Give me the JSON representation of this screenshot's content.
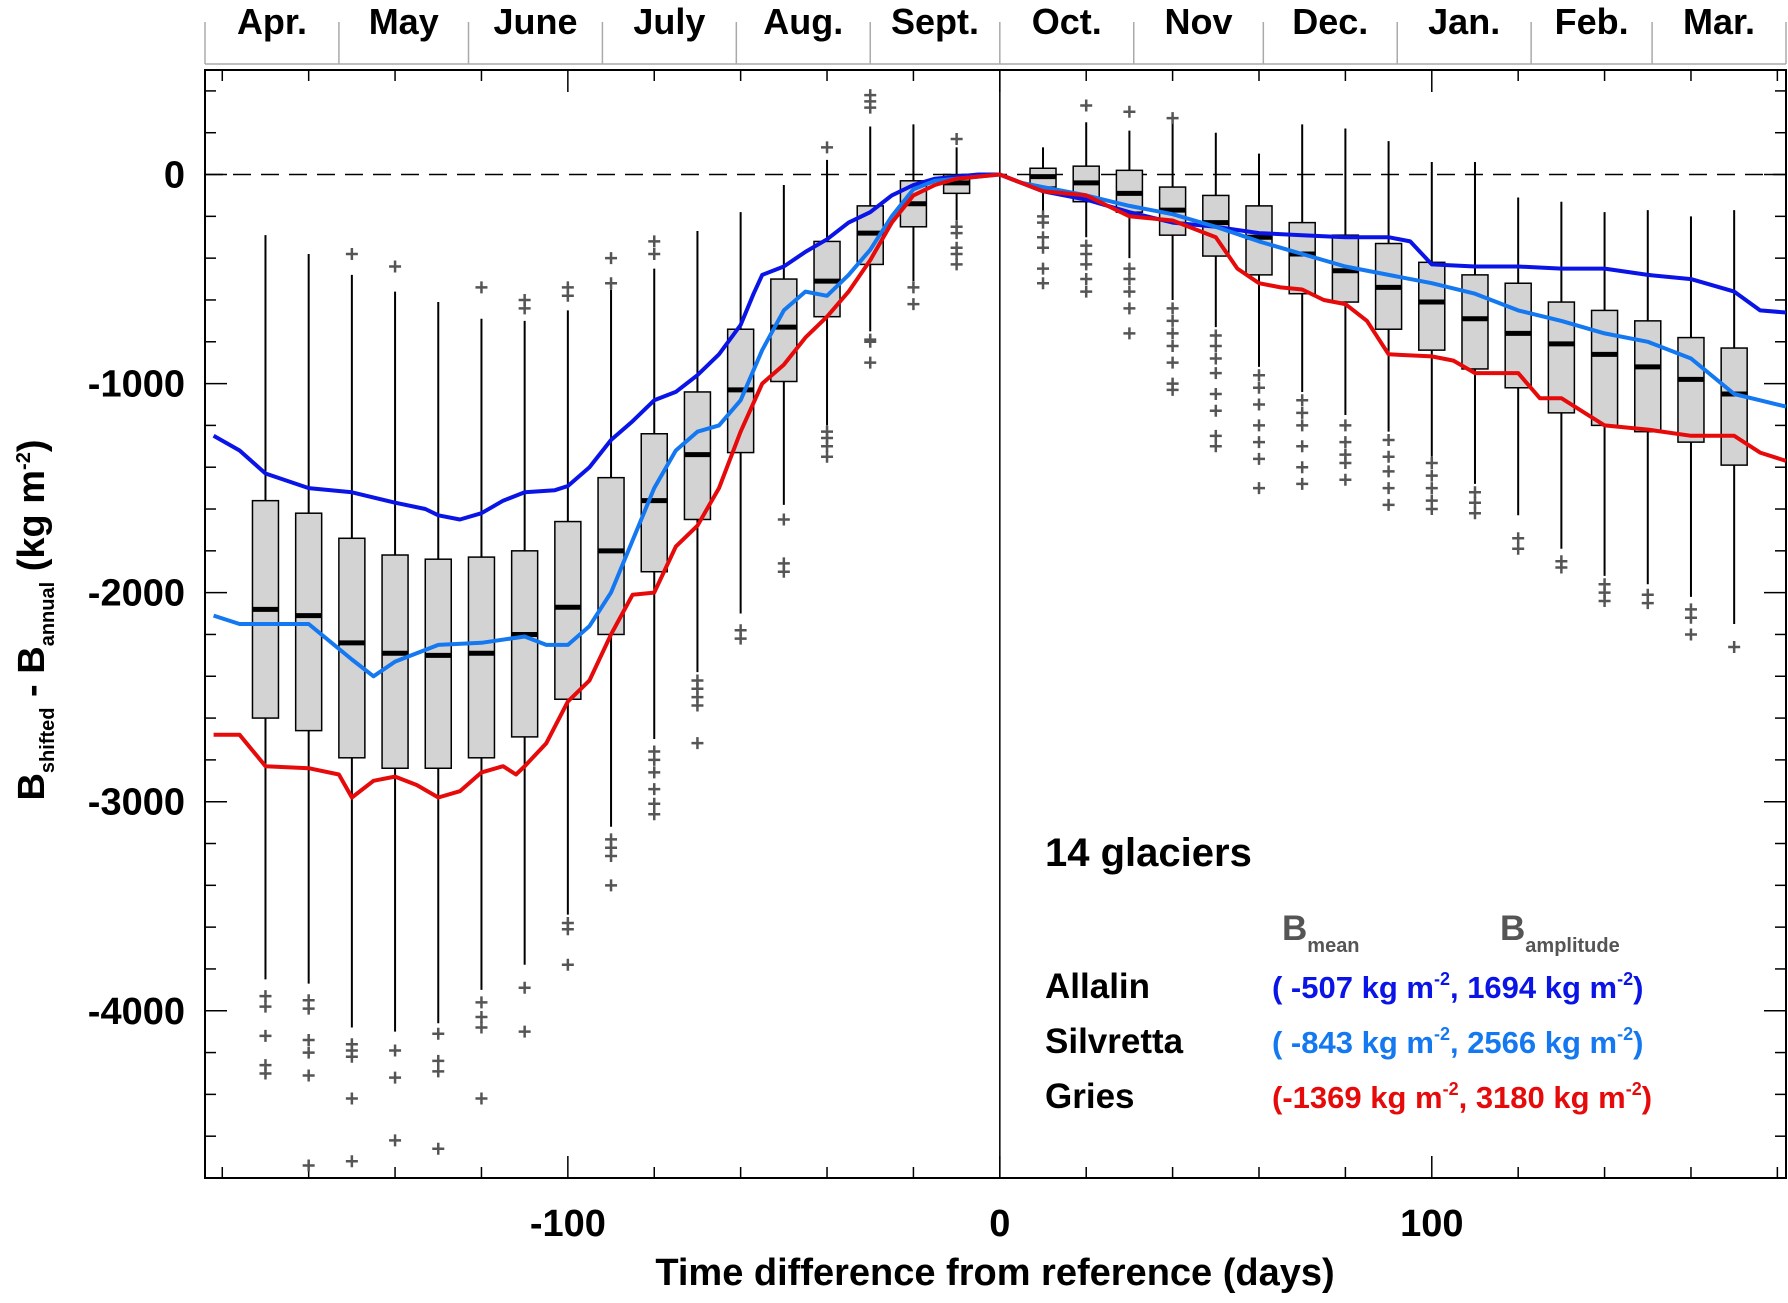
{
  "chart_data": {
    "type": "box",
    "xlabel": "Time difference from reference (days)",
    "ylabel": "B shifted - B annual (kg m-2)",
    "ylabel_parts": {
      "main": "B",
      "sub1": "shifted",
      "mid": " - B",
      "sub2": "annual",
      "unit": " (kg m",
      "unit_sup": "-2",
      "unit_end": ")"
    },
    "xlim": [
      -184,
      182
    ],
    "ylim": [
      -4800,
      500
    ],
    "xticks": [
      -100,
      0,
      100
    ],
    "xtick_labels": [
      "-100",
      "0",
      "100"
    ],
    "yticks": [
      0,
      -1000,
      -2000,
      -3000,
      -4000
    ],
    "ytick_labels": [
      "0",
      "-1000",
      "-2000",
      "-3000",
      "-4000"
    ],
    "months": [
      "Apr.",
      "May",
      "June",
      "July",
      "Aug.",
      "Sept.",
      "Oct.",
      "Nov",
      "Dec.",
      "Jan.",
      "Feb.",
      "Mar."
    ],
    "month_boundaries": [
      -184,
      -153,
      -123,
      -92,
      -61,
      -30,
      0,
      31,
      61,
      92,
      123,
      151,
      182
    ],
    "reference_line": 0,
    "annotation": "14 glaciers",
    "legend_header": {
      "mean_main": "B",
      "mean_sub": "mean",
      "amp_main": "B",
      "amp_sub": "amplitude"
    },
    "series": [
      {
        "name": "Allalin",
        "color": "#0a14e6",
        "stats": "( -507 kg m",
        "stats_sup1": "-2",
        "stats_mid": ",  1694 kg m",
        "stats_sup2": "-2",
        "stats_end": ")",
        "x": [
          -182,
          -176,
          -170,
          -160,
          -150,
          -140,
          -133,
          -130,
          -125,
          -120,
          -115,
          -110,
          -103,
          -100,
          -95,
          -90,
          -85,
          -80,
          -75,
          -70,
          -65,
          -60,
          -57,
          -55,
          -50,
          -45,
          -40,
          -35,
          -30,
          -25,
          -20,
          -15,
          -10,
          -5,
          0,
          5,
          10,
          20,
          30,
          40,
          50,
          60,
          70,
          80,
          90,
          95,
          100,
          110,
          120,
          130,
          140,
          150,
          160,
          170,
          176,
          182
        ],
        "y": [
          -1250,
          -1320,
          -1430,
          -1500,
          -1520,
          -1570,
          -1600,
          -1630,
          -1650,
          -1620,
          -1560,
          -1520,
          -1510,
          -1490,
          -1400,
          -1270,
          -1180,
          -1080,
          -1040,
          -960,
          -860,
          -720,
          -570,
          -480,
          -440,
          -370,
          -310,
          -230,
          -180,
          -100,
          -50,
          -20,
          -10,
          0,
          0,
          -40,
          -80,
          -120,
          -180,
          -230,
          -250,
          -280,
          -290,
          -300,
          -300,
          -320,
          -430,
          -440,
          -440,
          -450,
          -450,
          -480,
          -500,
          -560,
          -650,
          -660
        ]
      },
      {
        "name": "Silvretta",
        "color": "#1478f0",
        "stats": "( -843 kg m",
        "stats_sup1": "-2",
        "stats_mid": ",  2566 kg m",
        "stats_sup2": "-2",
        "stats_end": ")",
        "x": [
          -182,
          -176,
          -170,
          -160,
          -150,
          -145,
          -140,
          -130,
          -120,
          -110,
          -105,
          -100,
          -95,
          -90,
          -85,
          -80,
          -75,
          -70,
          -65,
          -60,
          -55,
          -50,
          -45,
          -40,
          -35,
          -30,
          -25,
          -20,
          -15,
          -10,
          -5,
          0,
          5,
          10,
          20,
          30,
          40,
          50,
          60,
          70,
          80,
          90,
          100,
          110,
          120,
          130,
          140,
          150,
          160,
          170,
          176,
          182
        ],
        "y": [
          -2110,
          -2150,
          -2150,
          -2150,
          -2320,
          -2400,
          -2330,
          -2250,
          -2240,
          -2210,
          -2250,
          -2250,
          -2160,
          -2000,
          -1750,
          -1500,
          -1320,
          -1230,
          -1200,
          -1080,
          -840,
          -650,
          -560,
          -580,
          -480,
          -360,
          -200,
          -70,
          -30,
          -20,
          -10,
          0,
          -40,
          -60,
          -100,
          -150,
          -190,
          -250,
          -320,
          -380,
          -440,
          -480,
          -520,
          -570,
          -650,
          -700,
          -760,
          -800,
          -880,
          -1050,
          -1080,
          -1110
        ]
      },
      {
        "name": "Gries",
        "color": "#e60a0a",
        "stats": "(-1369 kg m",
        "stats_sup1": "-2",
        "stats_mid": ",  3180 kg m",
        "stats_sup2": "-2",
        "stats_end": ")",
        "x": [
          -182,
          -176,
          -170,
          -160,
          -153,
          -150,
          -145,
          -140,
          -135,
          -130,
          -125,
          -120,
          -115,
          -112,
          -110,
          -105,
          -100,
          -95,
          -90,
          -85,
          -80,
          -75,
          -70,
          -65,
          -60,
          -55,
          -50,
          -45,
          -40,
          -35,
          -30,
          -25,
          -20,
          -15,
          -10,
          -5,
          0,
          5,
          10,
          20,
          30,
          40,
          50,
          55,
          60,
          65,
          70,
          75,
          80,
          85,
          90,
          100,
          105,
          110,
          120,
          125,
          130,
          140,
          150,
          160,
          170,
          176,
          182
        ],
        "y": [
          -2680,
          -2680,
          -2830,
          -2840,
          -2870,
          -2980,
          -2900,
          -2880,
          -2920,
          -2980,
          -2950,
          -2860,
          -2830,
          -2870,
          -2830,
          -2720,
          -2520,
          -2420,
          -2200,
          -2010,
          -2000,
          -1780,
          -1680,
          -1500,
          -1230,
          -1000,
          -910,
          -780,
          -680,
          -560,
          -410,
          -230,
          -100,
          -50,
          -20,
          -10,
          0,
          -40,
          -80,
          -100,
          -200,
          -220,
          -300,
          -450,
          -520,
          -540,
          -550,
          -600,
          -620,
          -700,
          -860,
          -870,
          -890,
          -950,
          -950,
          -1070,
          -1070,
          -1200,
          -1220,
          -1250,
          -1250,
          -1330,
          -1370
        ]
      }
    ],
    "boxes": [
      {
        "x": -170,
        "q1": -2600,
        "med": -2080,
        "q3": -1560,
        "wlo": -3850,
        "whi": -290,
        "out": [
          -3930,
          -3980,
          -4120,
          -4260,
          -4300
        ]
      },
      {
        "x": -160,
        "q1": -2660,
        "med": -2110,
        "q3": -1620,
        "wlo": -3870,
        "whi": -380,
        "out": [
          -3950,
          -3990,
          -4140,
          -4200,
          -4310,
          -4740
        ]
      },
      {
        "x": -150,
        "q1": -2790,
        "med": -2240,
        "q3": -1740,
        "wlo": -4080,
        "whi": -480,
        "out": [
          -380,
          -4160,
          -4190,
          -4220,
          -4420,
          -4720
        ]
      },
      {
        "x": -140,
        "q1": -2840,
        "med": -2290,
        "q3": -1820,
        "wlo": -4100,
        "whi": -560,
        "out": [
          -440,
          -4190,
          -4320,
          -4620
        ]
      },
      {
        "x": -130,
        "q1": -2840,
        "med": -2300,
        "q3": -1840,
        "wlo": -4060,
        "whi": -610,
        "out": [
          -4110,
          -4240,
          -4290,
          -4660
        ]
      },
      {
        "x": -120,
        "q1": -2790,
        "med": -2290,
        "q3": -1830,
        "wlo": -3900,
        "whi": -690,
        "out": [
          -540,
          -3960,
          -4030,
          -4080,
          -4420
        ]
      },
      {
        "x": -110,
        "q1": -2690,
        "med": -2200,
        "q3": -1800,
        "wlo": -3780,
        "whi": -700,
        "out": [
          -600,
          -640,
          -3890,
          -4100
        ]
      },
      {
        "x": -100,
        "q1": -2510,
        "med": -2070,
        "q3": -1660,
        "wlo": -3540,
        "whi": -650,
        "out": [
          -540,
          -580,
          -3580,
          -3610,
          -3780
        ]
      },
      {
        "x": -90,
        "q1": -2200,
        "med": -1800,
        "q3": -1450,
        "wlo": -3120,
        "whi": -550,
        "out": [
          -400,
          -520,
          -3180,
          -3220,
          -3260,
          -3400
        ]
      },
      {
        "x": -80,
        "q1": -1900,
        "med": -1560,
        "q3": -1240,
        "wlo": -2700,
        "whi": -450,
        "out": [
          -320,
          -380,
          -2760,
          -2800,
          -2860,
          -2940,
          -3010,
          -3060
        ]
      },
      {
        "x": -70,
        "q1": -1650,
        "med": -1340,
        "q3": -1040,
        "wlo": -2380,
        "whi": -270,
        "out": [
          -2420,
          -2460,
          -2500,
          -2540,
          -2720
        ]
      },
      {
        "x": -60,
        "q1": -1330,
        "med": -1030,
        "q3": -740,
        "wlo": -2100,
        "whi": -180,
        "out": [
          -2180,
          -2220
        ]
      },
      {
        "x": -50,
        "q1": -990,
        "med": -730,
        "q3": -500,
        "wlo": -1580,
        "whi": -50,
        "out": [
          -1650,
          -1860,
          -1900
        ]
      },
      {
        "x": -40,
        "q1": -680,
        "med": -510,
        "q3": -320,
        "wlo": -1200,
        "whi": 70,
        "out": [
          130,
          -1230,
          -1260,
          -1300,
          -1350
        ]
      },
      {
        "x": -30,
        "q1": -430,
        "med": -280,
        "q3": -150,
        "wlo": -750,
        "whi": 230,
        "out": [
          320,
          350,
          380,
          -790,
          -800,
          -900
        ]
      },
      {
        "x": -20,
        "q1": -250,
        "med": -140,
        "q3": -30,
        "wlo": -510,
        "whi": 240,
        "out": [
          -540,
          -620
        ]
      },
      {
        "x": -10,
        "q1": -90,
        "med": -40,
        "q3": 0,
        "wlo": -220,
        "whi": 130,
        "out": [
          170,
          -250,
          -280,
          -350,
          -380,
          -430
        ]
      },
      {
        "x": 10,
        "q1": -60,
        "med": -10,
        "q3": 30,
        "wlo": -180,
        "whi": 130,
        "out": [
          -200,
          -230,
          -300,
          -350,
          -450,
          -520
        ]
      },
      {
        "x": 20,
        "q1": -130,
        "med": -40,
        "q3": 40,
        "wlo": -300,
        "whi": 250,
        "out": [
          330,
          -340,
          -380,
          -430,
          -500,
          -560
        ]
      },
      {
        "x": 30,
        "q1": -180,
        "med": -90,
        "q3": 20,
        "wlo": -400,
        "whi": 210,
        "out": [
          300,
          -450,
          -500,
          -560,
          -640,
          -760
        ]
      },
      {
        "x": 40,
        "q1": -290,
        "med": -170,
        "q3": -60,
        "wlo": -600,
        "whi": 250,
        "out": [
          270,
          -640,
          -700,
          -760,
          -820,
          -900,
          -1000,
          -1030
        ]
      },
      {
        "x": 50,
        "q1": -390,
        "med": -230,
        "q3": -100,
        "wlo": -730,
        "whi": 200,
        "out": [
          -770,
          -820,
          -880,
          -950,
          -1050,
          -1130,
          -1250,
          -1300
        ]
      },
      {
        "x": 60,
        "q1": -480,
        "med": -300,
        "q3": -150,
        "wlo": -920,
        "whi": 100,
        "out": [
          -960,
          -1020,
          -1100,
          -1200,
          -1280,
          -1360,
          -1500
        ]
      },
      {
        "x": 70,
        "q1": -570,
        "med": -380,
        "q3": -230,
        "wlo": -1040,
        "whi": 240,
        "out": [
          -1080,
          -1140,
          -1200,
          -1300,
          -1400,
          -1480
        ]
      },
      {
        "x": 80,
        "q1": -610,
        "med": -460,
        "q3": -290,
        "wlo": -1150,
        "whi": 220,
        "out": [
          -1200,
          -1280,
          -1340,
          -1380,
          -1460
        ]
      },
      {
        "x": 90,
        "q1": -740,
        "med": -540,
        "q3": -330,
        "wlo": -1230,
        "whi": 160,
        "out": [
          -1270,
          -1350,
          -1420,
          -1500,
          -1580
        ]
      },
      {
        "x": 100,
        "q1": -840,
        "med": -610,
        "q3": -420,
        "wlo": -1350,
        "whi": 60,
        "out": [
          -1380,
          -1440,
          -1500,
          -1560,
          -1600
        ]
      },
      {
        "x": 110,
        "q1": -930,
        "med": -690,
        "q3": -480,
        "wlo": -1480,
        "whi": 60,
        "out": [
          -1520,
          -1570,
          -1620
        ]
      },
      {
        "x": 120,
        "q1": -1020,
        "med": -760,
        "q3": -520,
        "wlo": -1630,
        "whi": -110,
        "out": [
          -1740,
          -1790
        ]
      },
      {
        "x": 130,
        "q1": -1140,
        "med": -810,
        "q3": -610,
        "wlo": -1790,
        "whi": -130,
        "out": [
          -1850,
          -1880
        ]
      },
      {
        "x": 140,
        "q1": -1200,
        "med": -860,
        "q3": -650,
        "wlo": -1920,
        "whi": -180,
        "out": [
          -1960,
          -2000,
          -2040
        ]
      },
      {
        "x": 150,
        "q1": -1230,
        "med": -920,
        "q3": -700,
        "wlo": -1960,
        "whi": -170,
        "out": [
          -2010,
          -2050
        ]
      },
      {
        "x": 160,
        "q1": -1280,
        "med": -980,
        "q3": -780,
        "wlo": -2020,
        "whi": -200,
        "out": [
          -2080,
          -2120,
          -2200
        ]
      },
      {
        "x": 170,
        "q1": -1390,
        "med": -1050,
        "q3": -830,
        "wlo": -2150,
        "whi": -170,
        "out": [
          -2260
        ]
      }
    ]
  }
}
